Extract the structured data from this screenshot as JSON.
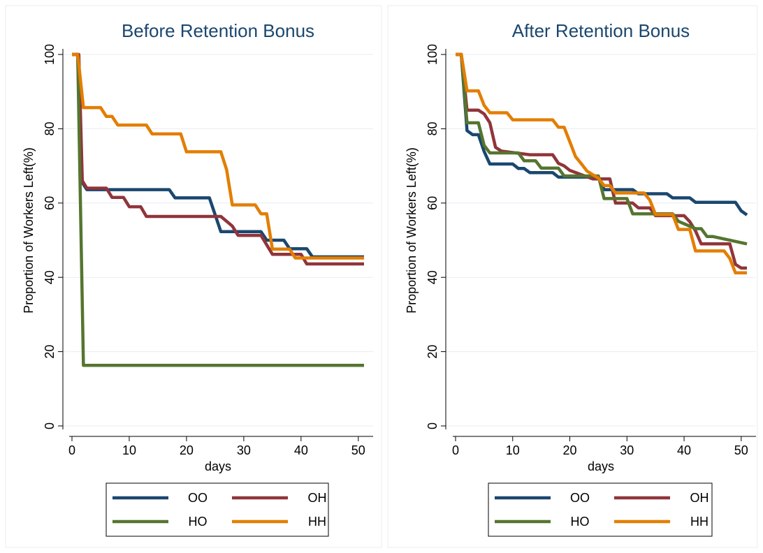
{
  "chart_data": [
    {
      "type": "line",
      "title": "Before Retention Bonus",
      "xlabel": "days",
      "ylabel": "Proportion of Workers Left(%)",
      "xlim": [
        0,
        51
      ],
      "ylim": [
        0,
        100
      ],
      "xticks": [
        0,
        10,
        20,
        30,
        40,
        50
      ],
      "yticks": [
        0,
        20,
        40,
        60,
        80,
        100
      ],
      "grid": true,
      "legend_position": "bottom",
      "series": [
        {
          "name": "OO",
          "color": "#1a476f",
          "x": [
            0,
            1,
            1.6,
            2.6,
            6,
            17,
            18,
            24,
            26,
            33,
            34,
            37,
            38,
            41,
            42,
            51
          ],
          "y": [
            100,
            100,
            66,
            63.6,
            63.6,
            63.6,
            61.4,
            61.4,
            52.3,
            52.3,
            50,
            50,
            47.7,
            47.7,
            45.5,
            45.5
          ]
        },
        {
          "name": "OH",
          "color": "#90353b",
          "x": [
            0,
            1.2,
            1.8,
            2.6,
            6,
            7,
            9,
            10,
            12,
            13,
            26,
            28,
            29,
            33,
            35,
            40,
            41,
            51
          ],
          "y": [
            100,
            100,
            66,
            64,
            64,
            61.5,
            61.5,
            59,
            59,
            56.4,
            56.4,
            53.8,
            51.3,
            51.3,
            46.2,
            46.2,
            43.6,
            43.6
          ]
        },
        {
          "name": "HO",
          "color": "#55752f",
          "x": [
            0,
            1,
            2,
            51
          ],
          "y": [
            100,
            100,
            16.3,
            16.3
          ]
        },
        {
          "name": "HH",
          "color": "#e37e00",
          "x": [
            0,
            1,
            2,
            5,
            6,
            7,
            8,
            13,
            14,
            19,
            20,
            26,
            27,
            28,
            32,
            33,
            34,
            35,
            38,
            39,
            40,
            51
          ],
          "y": [
            100,
            100,
            85.7,
            85.7,
            83.3,
            83.3,
            81,
            81,
            78.6,
            78.6,
            73.8,
            73.8,
            69,
            59.5,
            59.5,
            57.1,
            57.1,
            47.6,
            47.6,
            45.2,
            45.2,
            45.2
          ]
        }
      ]
    },
    {
      "type": "line",
      "title": "After Retention Bonus",
      "xlabel": "days",
      "ylabel": "Proportion of Workers Left(%)",
      "xlim": [
        0,
        51
      ],
      "ylim": [
        0,
        100
      ],
      "xticks": [
        0,
        10,
        20,
        30,
        40,
        50
      ],
      "yticks": [
        0,
        20,
        40,
        60,
        80,
        100
      ],
      "grid": true,
      "legend_position": "bottom",
      "series": [
        {
          "name": "OO",
          "color": "#1a476f",
          "x": [
            0,
            1,
            2,
            3,
            4,
            5,
            6,
            10,
            11,
            12,
            13,
            17,
            18,
            25,
            26,
            31,
            32,
            37,
            38,
            41,
            42,
            46,
            47,
            49,
            50,
            51
          ],
          "y": [
            100,
            100,
            79.5,
            78.4,
            78.4,
            73.9,
            70.5,
            70.5,
            69.3,
            69.3,
            68.2,
            68.2,
            67,
            67,
            63.6,
            63.6,
            62.5,
            62.5,
            61.4,
            61.4,
            60.2,
            60.2,
            60.2,
            60.2,
            57.9,
            56.8
          ]
        },
        {
          "name": "OH",
          "color": "#90353b",
          "x": [
            0,
            1,
            2,
            4,
            5,
            6,
            7,
            8,
            13,
            14,
            17,
            18,
            19,
            20,
            24,
            25,
            27,
            28,
            31,
            32,
            34,
            35,
            40,
            41,
            42,
            43,
            48,
            49,
            50,
            51
          ],
          "y": [
            100,
            100,
            85,
            85,
            84,
            81.6,
            75,
            74,
            73,
            73,
            73,
            70.7,
            70,
            68.8,
            66.5,
            66.5,
            66.5,
            60,
            60,
            58.7,
            58.7,
            56.6,
            56.6,
            55,
            52.5,
            49,
            49,
            43.5,
            42.5,
            42.5
          ]
        },
        {
          "name": "HO",
          "color": "#55752f",
          "x": [
            0,
            1,
            2,
            4,
            5,
            6,
            11,
            12,
            14,
            15,
            18,
            19,
            25,
            26,
            30,
            31,
            34,
            35,
            38,
            39,
            42,
            43,
            44,
            45,
            51
          ],
          "y": [
            100,
            100,
            81.6,
            81.6,
            75.5,
            73.5,
            73.5,
            71.4,
            71.4,
            69.4,
            69.4,
            67.3,
            67.3,
            61.2,
            61.2,
            57.1,
            57.1,
            57.1,
            57.1,
            55.1,
            53.1,
            53.1,
            51,
            51,
            49
          ]
        },
        {
          "name": "HH",
          "color": "#e37e00",
          "x": [
            0,
            1,
            2,
            4,
            5,
            6,
            9,
            10,
            17,
            18,
            19,
            20,
            21,
            22,
            23,
            25,
            26,
            27,
            28,
            33,
            34,
            35,
            38,
            39,
            41,
            42,
            47,
            48,
            49,
            51
          ],
          "y": [
            100,
            100,
            90.2,
            90.2,
            86.3,
            84.3,
            84.3,
            82.4,
            82.4,
            80.4,
            80.4,
            76.5,
            72.5,
            70.6,
            68.6,
            66.7,
            64.7,
            64.7,
            62.7,
            62.7,
            60.8,
            56.9,
            56.9,
            52.9,
            52.9,
            47.1,
            47.1,
            45.1,
            41.2,
            41.2
          ]
        }
      ]
    }
  ]
}
